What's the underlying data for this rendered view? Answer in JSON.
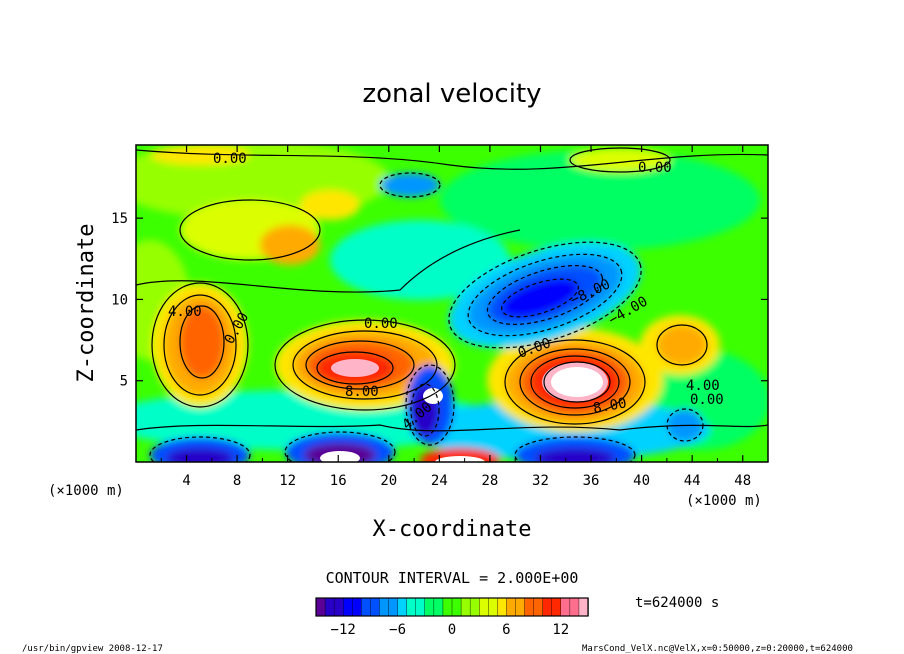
{
  "chart_data": {
    "type": "heatmap",
    "title": "zonal velocity",
    "xlabel": "X-coordinate",
    "ylabel": "Z-coordinate",
    "x_unit": "(×1000 m)",
    "y_unit": "(×1000 m)",
    "xlim": [
      0,
      50
    ],
    "ylim": [
      0,
      19.5
    ],
    "x_ticks": [
      "4",
      "8",
      "12",
      "16",
      "20",
      "24",
      "28",
      "32",
      "36",
      "40",
      "44",
      "48"
    ],
    "y_ticks": [
      "5",
      "10",
      "15"
    ],
    "contour_interval_text": "CONTOUR INTERVAL = 2.000E+00",
    "time_label": "t=624000 s",
    "colorbar": {
      "range": [
        -15,
        15
      ],
      "ticks": [
        "−12",
        "−6",
        "0",
        "6",
        "12"
      ],
      "colors": [
        "#5a0096",
        "#2800c8",
        "#0000ff",
        "#0050ff",
        "#0096ff",
        "#00d2ff",
        "#00ffc8",
        "#00ff64",
        "#3cff00",
        "#96ff00",
        "#dcff00",
        "#ffe600",
        "#ffaa00",
        "#ff6400",
        "#ff2800",
        "#ff6e8c",
        "#ffb4c8"
      ]
    },
    "contour_labels": [
      "0.00",
      "4.00",
      "8.00",
      "−8.00",
      "−4.00"
    ],
    "features": [
      {
        "x": 5.5,
        "z": 7.5,
        "value": 8
      },
      {
        "x": 17,
        "z": 6,
        "value": 12
      },
      {
        "x": 35,
        "z": 5,
        "value": 16
      },
      {
        "x": 31.5,
        "z": 10.5,
        "value": -12
      },
      {
        "x": 23.5,
        "z": 4,
        "value": -16
      },
      {
        "x": 17,
        "z": 1,
        "value": -16
      },
      {
        "x": 25,
        "z": 0.3,
        "value": 16
      }
    ]
  },
  "footer": {
    "left": "/usr/bin/gpview  2008-12-17",
    "right": "MarsCond_VelX.nc@VelX,x=0:50000,z=0:20000,t=624000"
  }
}
